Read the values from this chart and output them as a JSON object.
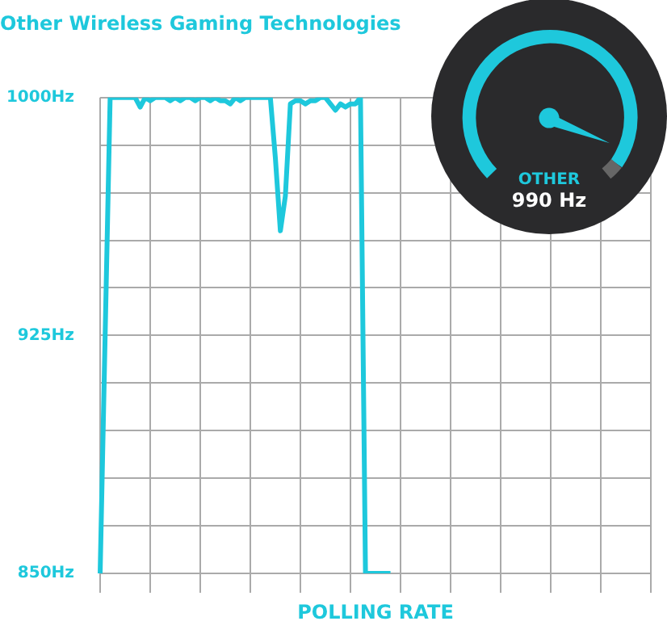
{
  "chart_data": {
    "type": "line",
    "title": "Other Wireless Gaming Technologies",
    "xlabel": "POLLING RATE",
    "annotations": [
      "OTHER",
      "990 Hz"
    ],
    "categories": [
      null,
      null,
      null,
      null,
      null,
      null,
      null,
      null,
      null,
      null,
      null,
      null,
      null,
      null,
      null,
      null,
      null,
      null,
      null,
      null,
      null,
      null,
      null,
      null,
      null,
      null,
      null,
      null,
      null,
      null,
      null,
      null,
      null,
      null,
      null,
      null,
      null,
      null,
      null,
      null,
      null,
      null,
      null,
      null,
      null,
      null,
      null,
      null,
      null,
      null,
      null,
      null,
      null,
      null,
      null,
      null,
      null,
      null,
      null,
      null,
      null,
      null,
      null,
      null,
      null,
      null,
      null,
      null,
      null,
      null,
      null,
      null,
      null,
      null,
      null,
      null,
      null,
      null,
      null,
      null,
      null,
      null,
      null,
      null,
      null,
      null,
      null,
      null,
      null,
      null,
      null,
      null,
      null,
      null,
      null,
      null,
      null,
      null,
      null,
      null,
      null,
      null,
      null,
      null,
      null,
      null,
      null,
      null,
      null,
      null,
      null
    ],
    "series": [
      {
        "color": "#1ec8dc",
        "values": [
          850,
          null,
          1000,
          1000,
          1000,
          1000,
          1000,
          1000,
          997,
          1000,
          999,
          1000,
          1000,
          1000,
          999,
          1000,
          999,
          1000,
          1000,
          999,
          1000,
          1000,
          999,
          1000,
          999,
          999,
          998,
          1000,
          999,
          1000,
          1000,
          1000,
          1000,
          1000,
          1000,
          981,
          958,
          969,
          998,
          999,
          999,
          998,
          999,
          999,
          1000,
          1000,
          998,
          996,
          998,
          997,
          998,
          998,
          1000,
          850,
          850,
          850,
          850,
          850,
          850,
          null,
          null,
          null,
          null,
          null,
          null,
          null,
          null,
          null,
          null,
          null,
          null,
          null,
          null,
          null,
          null,
          null,
          null,
          null,
          null,
          null,
          null,
          null,
          null,
          null,
          null,
          null,
          null,
          null,
          null,
          null,
          null,
          null,
          null,
          null,
          null,
          null,
          null,
          null,
          null,
          null,
          null,
          null,
          null,
          null,
          null,
          null,
          null,
          null,
          null,
          null,
          null
        ]
      }
    ],
    "ylim": [
      850,
      1000
    ],
    "yticks": [
      {
        "value": 850,
        "label": "850Hz"
      },
      {
        "value": 865,
        "label": null
      },
      {
        "value": 880,
        "label": null
      },
      {
        "value": 895,
        "label": null
      },
      {
        "value": 910,
        "label": null
      },
      {
        "value": 925,
        "label": "925Hz"
      },
      {
        "value": 940,
        "label": null
      },
      {
        "value": 955,
        "label": null
      },
      {
        "value": 970,
        "label": null
      },
      {
        "value": 985,
        "label": null
      },
      {
        "value": 1000,
        "label": "1000Hz"
      }
    ],
    "grid": true,
    "legend": false,
    "marker": "none",
    "line_style": "solid"
  }
}
